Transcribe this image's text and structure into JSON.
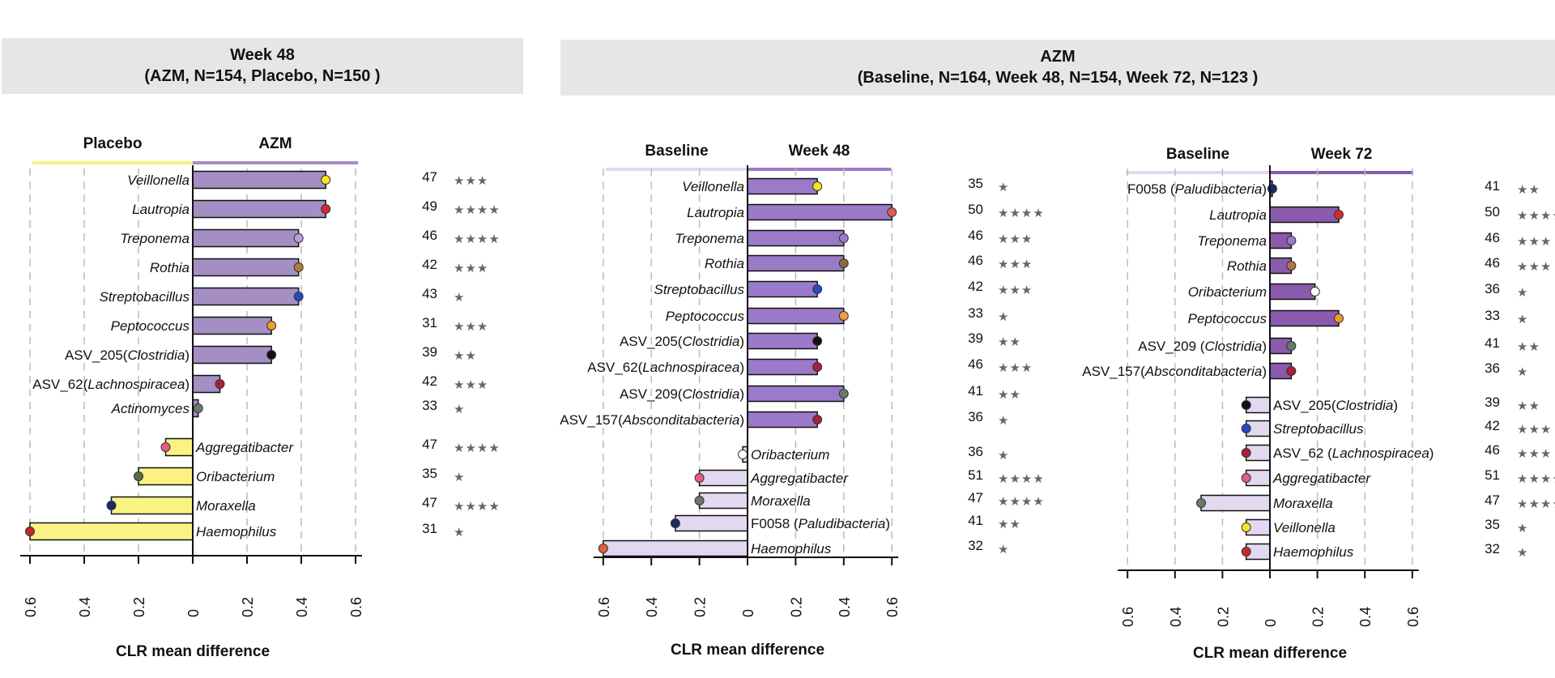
{
  "headers": {
    "left": {
      "line1": "Week 48",
      "line2": "(AZM, N=154, Placebo, N=150 )"
    },
    "right": {
      "line1": "AZM",
      "line2": "(Baseline, N=164, Week 48, N=154, Week 72, N=123 )"
    }
  },
  "colors": {
    "placebo": "#faf283",
    "azm": "#a48ec3",
    "baseline": "#e2d9f0",
    "week48": "#9b7ac9",
    "week72": "#8a5aad",
    "grid": "#bbbbbb",
    "stars": "#666666"
  },
  "chart_data": [
    {
      "id": "p1",
      "type": "bar",
      "orientation": "horizontal",
      "xlabel": "CLR mean difference",
      "xlim": [
        -0.6,
        0.6
      ],
      "xticks": [
        "0.6",
        "0.4",
        "0.2",
        "0",
        "0.2",
        "0.4",
        "0.6"
      ],
      "group_left": "Placebo",
      "group_right": "AZM",
      "grid": true,
      "categories": [
        {
          "label": "Veillonella",
          "value": 0.49,
          "n": "47",
          "stars": "★★★",
          "dot": "#f5e61e"
        },
        {
          "label": "Lautropia",
          "value": 0.49,
          "n": "49",
          "stars": "★★★★",
          "dot": "#d62830"
        },
        {
          "label": "Treponema",
          "value": 0.39,
          "n": "46",
          "stars": "★★★★",
          "dot": "#b6a0d8"
        },
        {
          "label": "Rothia",
          "value": 0.39,
          "n": "42",
          "stars": "★★★",
          "dot": "#b07a3c"
        },
        {
          "label": "Streptobacillus",
          "value": 0.39,
          "n": "43",
          "stars": "★",
          "dot": "#2848c8"
        },
        {
          "label": "Peptococcus",
          "value": 0.29,
          "n": "31",
          "stars": "★★★",
          "dot": "#f09a28"
        },
        {
          "label_pre": "ASV_205(",
          "label_it": "Clostridia",
          "label_post": ")",
          "value": 0.29,
          "n": "39",
          "stars": "★★",
          "dot": "#111111"
        },
        {
          "label_pre": "ASV_62(",
          "label_it": "Lachnospiracea",
          "label_post": ")",
          "value": 0.1,
          "n": "42",
          "stars": "★★★",
          "dot": "#a8203a"
        },
        {
          "label": "Actinomyces",
          "value": 0.02,
          "n": "33",
          "stars": "★",
          "dot": "#6a7a6a"
        },
        {
          "label": "Aggregatibacter",
          "value": -0.1,
          "n": "47",
          "stars": "★★★★",
          "dot": "#e85a88"
        },
        {
          "label": "Oribacterium",
          "value": -0.2,
          "n": "35",
          "stars": "★",
          "dot": "#5a6a4a"
        },
        {
          "label": "Moraxella",
          "value": -0.3,
          "n": "47",
          "stars": "★★★★",
          "dot": "#1a2a6a"
        },
        {
          "label": "Haemophilus",
          "value": -0.6,
          "n": "31",
          "stars": "★",
          "dot": "#c82828"
        }
      ]
    },
    {
      "id": "p2",
      "type": "bar",
      "orientation": "horizontal",
      "xlabel": "CLR mean difference",
      "xlim": [
        -0.6,
        0.6
      ],
      "xticks": [
        "0.6",
        "0.4",
        "0.2",
        "0",
        "0.2",
        "0.4",
        "0.6"
      ],
      "group_left": "Baseline",
      "group_right": "Week 48",
      "grid": true,
      "categories": [
        {
          "label": "Veillonella",
          "value": 0.29,
          "n": "35",
          "stars": "★",
          "dot": "#f5e61e"
        },
        {
          "label": "Lautropia",
          "value": 0.6,
          "n": "50",
          "stars": "★★★★",
          "dot": "#e05a5a"
        },
        {
          "label": "Treponema",
          "value": 0.4,
          "n": "46",
          "stars": "★★★",
          "dot": "#9b7ac9"
        },
        {
          "label": "Rothia",
          "value": 0.4,
          "n": "46",
          "stars": "★★★",
          "dot": "#8a6a3a"
        },
        {
          "label": "Streptobacillus",
          "value": 0.29,
          "n": "42",
          "stars": "★★★",
          "dot": "#2848c8"
        },
        {
          "label": "Peptococcus",
          "value": 0.4,
          "n": "33",
          "stars": "★",
          "dot": "#f0a040"
        },
        {
          "label_pre": "ASV_205(",
          "label_it": "Clostridia",
          "label_post": ")",
          "value": 0.29,
          "n": "39",
          "stars": "★★",
          "dot": "#111111"
        },
        {
          "label_pre": "ASV_62(",
          "label_it": "Lachnospiracea",
          "label_post": ")",
          "value": 0.29,
          "n": "46",
          "stars": "★★★",
          "dot": "#a8203a"
        },
        {
          "label_pre": "ASV_209(",
          "label_it": "Clostridia",
          "label_post": ")",
          "value": 0.4,
          "n": "41",
          "stars": "★★",
          "dot": "#6a7a6a"
        },
        {
          "label_pre": "ASV_157(",
          "label_it": "Absconditabacteria",
          "label_post": ")",
          "value": 0.29,
          "n": "36",
          "stars": "★",
          "dot": "#a8203a"
        },
        {
          "label": "Oribacterium",
          "value": -0.02,
          "n": "36",
          "stars": "★",
          "dot": "#ffffff"
        },
        {
          "label": "Aggregatibacter",
          "value": -0.2,
          "n": "51",
          "stars": "★★★★",
          "dot": "#e85a88"
        },
        {
          "label": "Moraxella",
          "value": -0.2,
          "n": "47",
          "stars": "★★★★",
          "dot": "#6a7a6a"
        },
        {
          "label_pre": "F0058 (",
          "label_it": "Paludibacteria",
          "label_post": ")",
          "value": -0.3,
          "n": "41",
          "stars": "★★",
          "dot": "#1a2a6a"
        },
        {
          "label": "Haemophilus",
          "value": -0.6,
          "n": "32",
          "stars": "★",
          "dot": "#e06040"
        }
      ]
    },
    {
      "id": "p3",
      "type": "bar",
      "orientation": "horizontal",
      "xlabel": "CLR mean difference",
      "xlim": [
        -0.6,
        0.6
      ],
      "xticks": [
        "0.6",
        "0.4",
        "0.2",
        "0",
        "0.2",
        "0.4",
        "0.6"
      ],
      "group_left": "Baseline",
      "group_right": "Week 72",
      "grid": true,
      "categories": [
        {
          "label_pre": "F0058 (",
          "label_it": "Paludibacteria",
          "label_post": ")",
          "value": 0.01,
          "n": "41",
          "stars": "★★",
          "dot": "#1a2a6a"
        },
        {
          "label": "Lautropia",
          "value": 0.29,
          "n": "50",
          "stars": "★★★★",
          "dot": "#d62830"
        },
        {
          "label": "Treponema",
          "value": 0.09,
          "n": "46",
          "stars": "★★★",
          "dot": "#9b7ac9"
        },
        {
          "label": "Rothia",
          "value": 0.09,
          "n": "46",
          "stars": "★★★",
          "dot": "#b07a3c"
        },
        {
          "label": "Oribacterium",
          "value": 0.19,
          "n": "36",
          "stars": "★",
          "dot": "#ffffff"
        },
        {
          "label": "Peptococcus",
          "value": 0.29,
          "n": "33",
          "stars": "★",
          "dot": "#f09a28"
        },
        {
          "label_pre": "ASV_209 (",
          "label_it": "Clostridia",
          "label_post": ")",
          "value": 0.09,
          "n": "41",
          "stars": "★★",
          "dot": "#6a7a6a"
        },
        {
          "label_pre": "ASV_157(",
          "label_it": "Absconditabacteria",
          "label_post": ")",
          "value": 0.09,
          "n": "36",
          "stars": "★",
          "dot": "#a8203a"
        },
        {
          "label_pre": "ASV_205(",
          "label_it": "Clostridia",
          "label_post": ")",
          "value": -0.1,
          "n": "39",
          "stars": "★★",
          "dot": "#111111",
          "side": "right"
        },
        {
          "label": "Streptobacillus",
          "value": -0.1,
          "n": "42",
          "stars": "★★★",
          "dot": "#2848c8",
          "side": "right"
        },
        {
          "label_pre": "ASV_62 (",
          "label_it": "Lachnospiracea",
          "label_post": ")",
          "value": -0.1,
          "n": "46",
          "stars": "★★★",
          "dot": "#a8203a",
          "side": "right"
        },
        {
          "label": "Aggregatibacter",
          "value": -0.1,
          "n": "51",
          "stars": "★★★★",
          "dot": "#e85a88",
          "side": "right"
        },
        {
          "label": "Moraxella",
          "value": -0.29,
          "n": "47",
          "stars": "★★★★",
          "dot": "#6a7a6a",
          "side": "right"
        },
        {
          "label": "Veillonella",
          "value": -0.1,
          "n": "35",
          "stars": "★",
          "dot": "#f5e61e",
          "side": "right"
        },
        {
          "label": "Haemophilus",
          "value": -0.1,
          "n": "32",
          "stars": "★",
          "dot": "#c82828",
          "side": "right"
        }
      ]
    }
  ]
}
